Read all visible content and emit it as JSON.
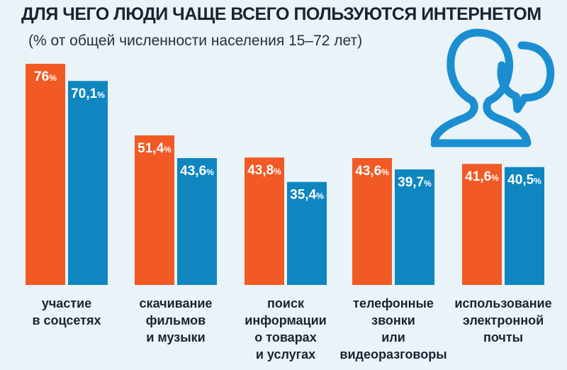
{
  "header": {
    "title": "ДЛЯ ЧЕГО ЛЮДИ ЧАЩЕ ВСЕГО ПОЛЬЗУЮТСЯ ИНТЕРНЕТОМ",
    "subtitle": "(% от общей численности населения 15–72 лет)"
  },
  "colors": {
    "series_a": "#f15a24",
    "series_b": "#0f86c0",
    "background": "#e9f3f8",
    "icon": "#1a8ed0"
  },
  "icons": [
    "people-chat-icon"
  ],
  "chart_data": {
    "type": "bar",
    "title": "ДЛЯ ЧЕГО ЛЮДИ ЧАЩЕ ВСЕГО ПОЛЬЗУЮТСЯ ИНТЕРНЕТОМ",
    "subtitle": "(% от общей численности населения 15–72 лет)",
    "xlabel": "",
    "ylabel": "",
    "ylim": [
      0,
      80
    ],
    "grid": false,
    "categories": [
      [
        "участие",
        "в соцсетях"
      ],
      [
        "скачивание",
        "фильмов",
        "и музыки"
      ],
      [
        "поиск",
        "информации",
        "о товарах",
        "и услугах"
      ],
      [
        "телефонные",
        "звонки",
        "или",
        "видеоразговоры"
      ],
      [
        "использование",
        "электронной",
        "почты"
      ]
    ],
    "series": [
      {
        "values": [
          76,
          51.4,
          43.8,
          43.6,
          41.6
        ],
        "labels": [
          "76",
          "51,4",
          "43,8",
          "43,6",
          "41,6"
        ]
      },
      {
        "values": [
          70.1,
          43.6,
          35.4,
          39.7,
          40.5
        ],
        "labels": [
          "70,1",
          "43,6",
          "35,4",
          "39,7",
          "40,5"
        ]
      }
    ],
    "unit": "%"
  }
}
